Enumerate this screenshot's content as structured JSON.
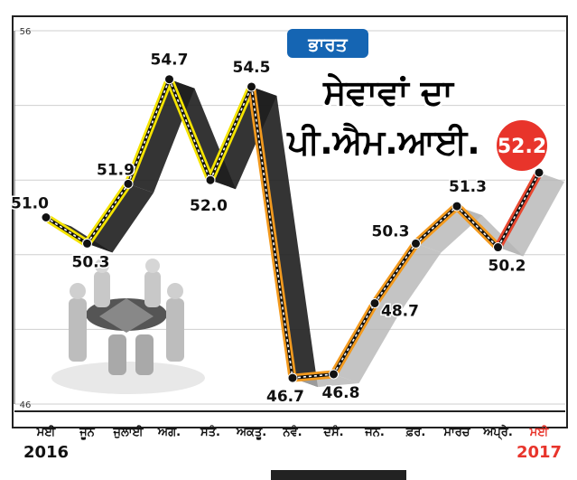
{
  "chart_data": {
    "type": "line",
    "title_tag": "ਭਾਰਤ",
    "title_line1": "ਸੇਵਾਵਾਂ ਦਾ",
    "title_line2": "ਪੀ.ਐਮ.ਆਈ.",
    "categories": [
      "ਮਈ",
      "ਜੂਨ",
      "ਜੁਲਾਈ",
      "ਅਗ.",
      "ਸਤੰ.",
      "ਅਕਤੂ.",
      "ਨਵੰ.",
      "ਦਸੰ.",
      "ਜਨ.",
      "ਫ਼ਰ.",
      "ਮਾਰਚ",
      "ਅਪ੍ਰੈ.",
      "ਮਈ"
    ],
    "year_start": "2016",
    "year_end": "2017",
    "values": [
      51.0,
      50.3,
      51.9,
      54.7,
      52.0,
      54.5,
      46.7,
      46.8,
      48.7,
      50.3,
      51.3,
      50.2,
      52.2
    ],
    "value_labels": [
      "51.0",
      "50.3",
      "51.9",
      "54.7",
      "52.0",
      "54.5",
      "46.7",
      "46.8",
      "48.7",
      "50.3",
      "51.3",
      "50.2",
      "52.2"
    ],
    "ylim": [
      46,
      56
    ],
    "yticks": [
      "56",
      "46"
    ],
    "colors": {
      "line_2016": "#f5e400",
      "line_2017_dip": "#f39a1e",
      "line_2017_end": "#e8472f",
      "highlight_circle": "#e8342b",
      "tag_bg": "#1565b3",
      "year_end": "#e8342b"
    }
  }
}
